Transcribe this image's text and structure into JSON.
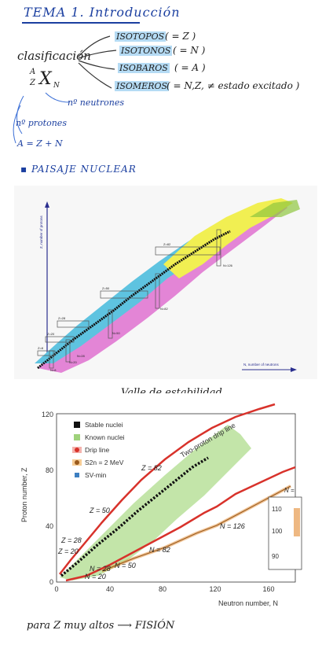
{
  "notes": {
    "title": "TEMA 1. Introducción",
    "clasificacion": "clasificación",
    "nucleus_A": "A",
    "nucleus_Z": "Z",
    "nucleus_X": "X",
    "nucleus_N": "N",
    "items": [
      {
        "label": "ISOTOPOS",
        "cond": "( = Z )"
      },
      {
        "label": "ISOTONOS",
        "cond": "( = N )"
      },
      {
        "label": "ISOBAROS",
        "cond": "( = A )"
      },
      {
        "label": "ISOMEROS",
        "cond": "( = N,Z, ≠ estado excitado )"
      }
    ],
    "neutrones": "nº neutrones",
    "protones": "nº protones",
    "A_eq": "A = Z + N",
    "paisaje": "PAISAJE NUCLEAR",
    "valle": "Valle de estabilidad",
    "bottom": "para Z muy altos ⟶ FISIÓN"
  },
  "figure1": {
    "ylabel": "Z, number of protons",
    "xlabel": "N, number of neutrons",
    "labels": [
      "Z=82",
      "N=126",
      "Z=50",
      "N=82",
      "Z=28",
      "Z=20",
      "N=50",
      "Z=8",
      "N=20",
      "N=28",
      "N=8"
    ]
  },
  "figure2": {
    "ylabel": "Proton number, Z",
    "xlabel": "Neutron number, N",
    "legend": [
      "Stable nuclei",
      "Known nuclei",
      "Drip line",
      "S2n = 2 MeV",
      "SV-min"
    ],
    "two_proton_label": "Two-proton drip line",
    "xticks": [
      "0",
      "40",
      "80",
      "120",
      "160"
    ],
    "yticks": [
      "0",
      "40",
      "80",
      "120"
    ],
    "magic": [
      "Z = 82",
      "Z = 50",
      "Z = 28",
      "Z = 20",
      "N = 126",
      "N = 82",
      "N = 50",
      "N = 28",
      "N = 20"
    ],
    "inset_ticks": [
      "110",
      "100",
      "90"
    ],
    "inset_edge": "N ="
  },
  "colors": {
    "ink": "#1b3fa0",
    "stable": "#111111",
    "known": "#9fd27b",
    "drip": "#d8322b",
    "s2n": "#e2892f",
    "svmin": "#3d7fc1"
  }
}
